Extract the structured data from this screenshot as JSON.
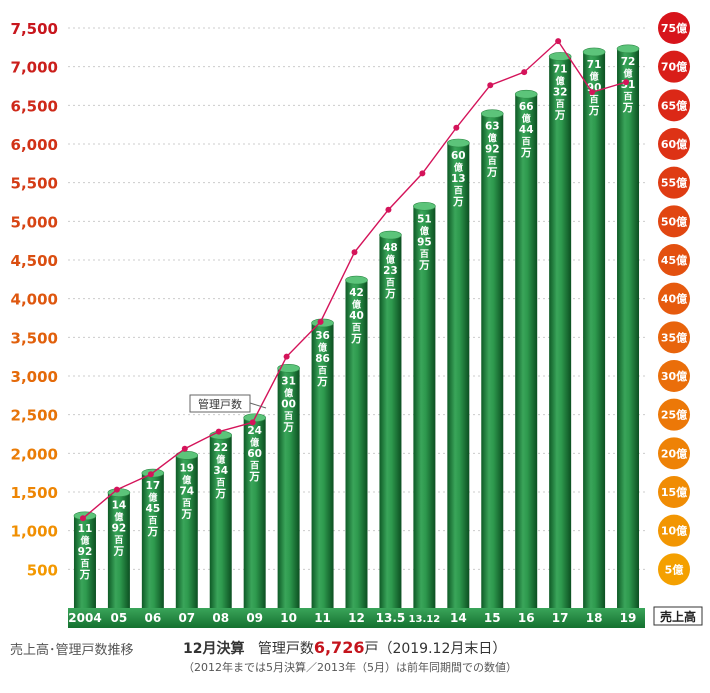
{
  "chart_data": {
    "type": "bar",
    "title": "",
    "categories": [
      "2004",
      "05",
      "06",
      "07",
      "08",
      "09",
      "10",
      "11",
      "12",
      "13.5",
      "13.12",
      "14",
      "15",
      "16",
      "17",
      "18",
      "19"
    ],
    "y_left": {
      "ticks": [
        "7,500",
        "7,000",
        "6,500",
        "6,000",
        "5,500",
        "5,000",
        "4,500",
        "4,000",
        "3,500",
        "3,000",
        "2,500",
        "2,000",
        "1,500",
        "1,000",
        "500"
      ],
      "values": [
        7500,
        7000,
        6500,
        6000,
        5500,
        5000,
        4500,
        4000,
        3500,
        3000,
        2500,
        2000,
        1500,
        1000,
        500
      ],
      "ylim": [
        0,
        7500
      ]
    },
    "y_right": {
      "ticks": [
        "75億",
        "70億",
        "65億",
        "60億",
        "55億",
        "50億",
        "45億",
        "40億",
        "35億",
        "30億",
        "25億",
        "20億",
        "15億",
        "10億",
        "5億"
      ],
      "ylim_oku": [
        0,
        75
      ]
    },
    "series": [
      {
        "name": "売上高",
        "kind": "bar",
        "axis": "right",
        "values_oku": [
          11.92,
          14.92,
          17.45,
          19.74,
          22.34,
          24.6,
          31.0,
          36.86,
          42.4,
          48.23,
          51.95,
          60.13,
          63.92,
          66.44,
          71.32,
          71.9,
          72.31
        ],
        "labels": [
          [
            "11",
            "億",
            "92",
            "百",
            "万"
          ],
          [
            "14",
            "億",
            "92",
            "百",
            "万"
          ],
          [
            "17",
            "億",
            "45",
            "百",
            "万"
          ],
          [
            "19",
            "億",
            "74",
            "百",
            "万"
          ],
          [
            "22",
            "億",
            "34",
            "百",
            "万"
          ],
          [
            "24",
            "億",
            "60",
            "百",
            "万"
          ],
          [
            "31",
            "億",
            "00",
            "百",
            "万"
          ],
          [
            "36",
            "億",
            "86",
            "百",
            "万"
          ],
          [
            "42",
            "億",
            "40",
            "百",
            "万"
          ],
          [
            "48",
            "億",
            "23",
            "百",
            "万"
          ],
          [
            "51",
            "億",
            "95",
            "百",
            "万"
          ],
          [
            "60",
            "億",
            "13",
            "百",
            "万"
          ],
          [
            "63",
            "億",
            "92",
            "百",
            "万"
          ],
          [
            "66",
            "億",
            "44",
            "百",
            "万"
          ],
          [
            "71",
            "億",
            "32",
            "百",
            "万"
          ],
          [
            "71",
            "億",
            "90",
            "百",
            "万"
          ],
          [
            "72",
            "億",
            "31",
            "百",
            "万"
          ]
        ]
      },
      {
        "name": "管理戸数",
        "kind": "line",
        "axis": "left",
        "values": [
          1160,
          1530,
          1730,
          2060,
          2280,
          2400,
          3250,
          3700,
          4600,
          5150,
          5620,
          6210,
          6760,
          6930,
          7330,
          6670,
          6800
        ]
      }
    ],
    "legend_line_label": "管理戸数",
    "right_axis_unit_label": "売上高",
    "colors": {
      "bar_light": "#4fb06a",
      "bar_mid": "#1f8a3c",
      "bar_dark": "#0e5a26",
      "line": "#d4145a",
      "year_band": "#1b8a3a",
      "left_tick_top": "#c8161d",
      "left_tick_bottom": "#f39800",
      "right_circle_top": "#d7141b",
      "right_circle_bottom": "#f4a000"
    },
    "grid": true
  },
  "captions": {
    "left": "売上高･管理戸数推移",
    "main_label": "12月決算",
    "main_prefix": "管理戸数",
    "main_value": "6,726",
    "main_suffix": "戸（2019.12月末日）",
    "note": "（2012年までは5月決算／2013年（5月）は前年同期間での数値）"
  }
}
